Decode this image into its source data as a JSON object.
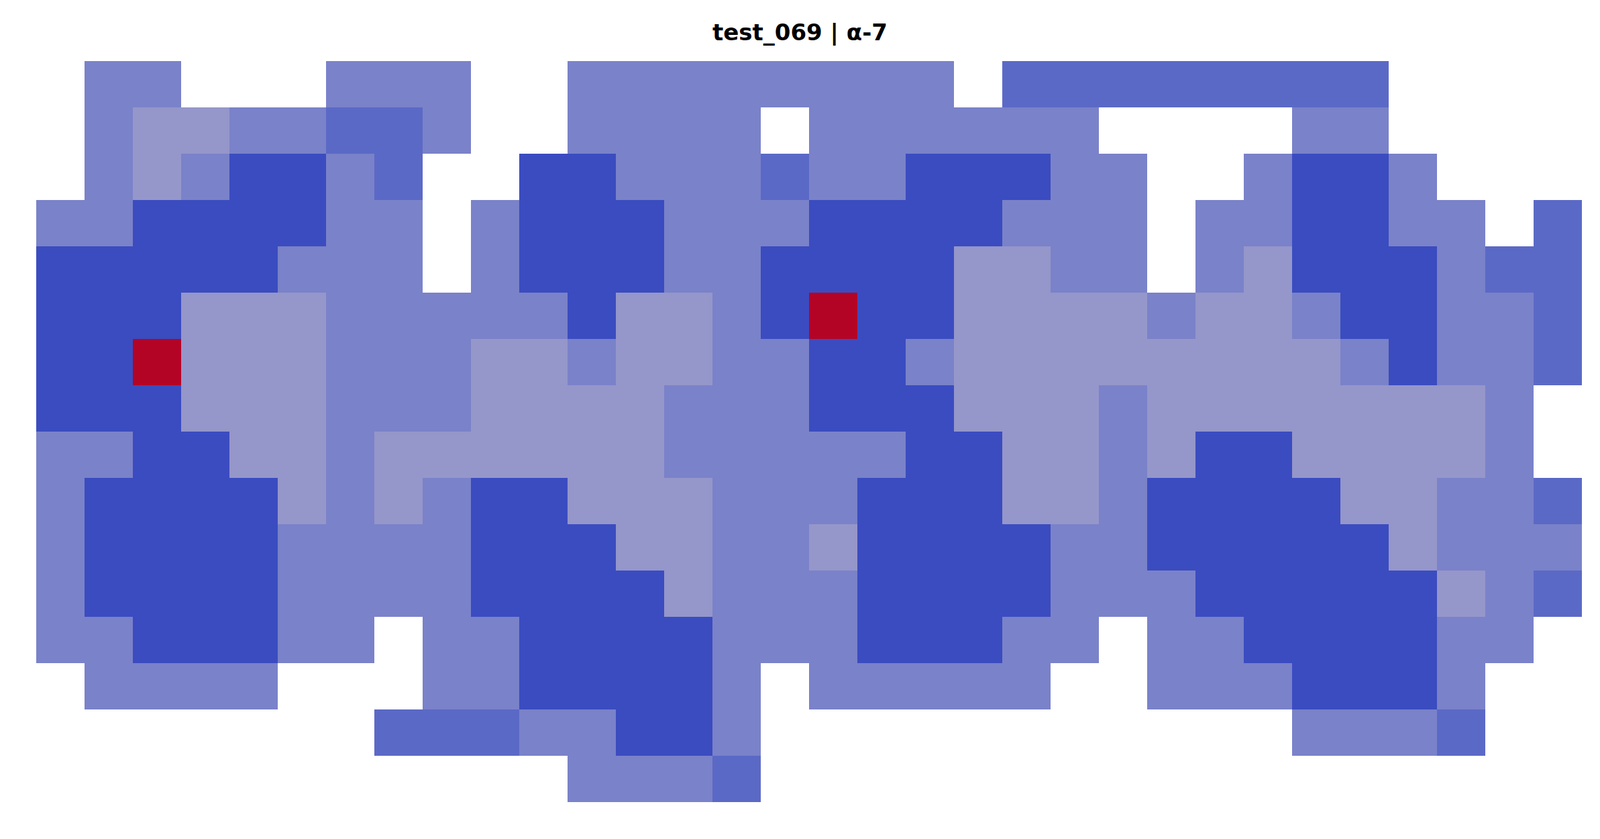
{
  "chart_data": {
    "type": "heatmap",
    "title": "test_069 | α-7",
    "tick_labels": false,
    "value_range": [
      0,
      1
    ],
    "cells": [
      [
        null,
        0.2,
        0.2,
        null,
        null,
        null,
        0.2,
        0.2,
        0.2,
        null,
        null,
        0.2,
        0.2,
        0.2,
        0.2,
        0.2,
        0.2,
        0.2,
        0.2,
        null,
        0.1,
        0.1,
        0.1,
        0.1,
        0.1,
        0.1,
        0.1,
        0.1,
        null,
        null,
        null,
        null
      ],
      [
        null,
        0.2,
        0.3,
        0.3,
        0.2,
        0.2,
        0.1,
        0.1,
        0.2,
        null,
        null,
        0.2,
        0.2,
        0.2,
        0.2,
        null,
        0.2,
        0.2,
        0.2,
        0.2,
        0.2,
        0.2,
        null,
        null,
        null,
        null,
        0.2,
        0.2,
        null,
        null,
        null,
        null
      ],
      [
        null,
        0.2,
        0.3,
        0.2,
        0,
        0,
        0.2,
        0.1,
        null,
        null,
        0,
        0,
        0.2,
        0.2,
        0.2,
        0.1,
        0.2,
        0.2,
        0,
        0,
        0,
        0.2,
        0.2,
        null,
        null,
        0.2,
        0,
        0,
        0.2,
        null,
        null,
        null
      ],
      [
        0.2,
        0.2,
        0,
        0,
        0,
        0,
        0.2,
        0.2,
        null,
        0.2,
        0,
        0,
        0,
        0.2,
        0.2,
        0.2,
        0,
        0,
        0,
        0,
        0.2,
        0.2,
        0.2,
        null,
        0.2,
        0.2,
        0,
        0,
        0.2,
        0.2,
        null,
        0.1
      ],
      [
        0,
        0,
        0,
        0,
        0,
        0.2,
        0.2,
        0.2,
        null,
        0.2,
        0,
        0,
        0,
        0.2,
        0.2,
        0,
        0,
        0,
        0,
        0.3,
        0.3,
        0.2,
        0.2,
        null,
        0.2,
        0.3,
        0,
        0,
        0,
        0.2,
        0.1,
        0.1
      ],
      [
        0,
        0,
        0,
        0.3,
        0.3,
        0.3,
        0.2,
        0.2,
        0.2,
        0.2,
        0.2,
        0,
        0.3,
        0.3,
        0.2,
        0,
        1,
        0,
        0,
        0.3,
        0.3,
        0.3,
        0.3,
        0.2,
        0.3,
        0.3,
        0.2,
        0,
        0,
        0.2,
        0.2,
        0.1
      ],
      [
        0,
        0,
        1,
        0.3,
        0.3,
        0.3,
        0.2,
        0.2,
        0.2,
        0.3,
        0.3,
        0.2,
        0.3,
        0.3,
        0.2,
        0.2,
        0,
        0,
        0.2,
        0.3,
        0.3,
        0.3,
        0.3,
        0.3,
        0.3,
        0.3,
        0.3,
        0.2,
        0,
        0.2,
        0.2,
        0.1
      ],
      [
        0,
        0,
        0,
        0.3,
        0.3,
        0.3,
        0.2,
        0.2,
        0.2,
        0.3,
        0.3,
        0.3,
        0.3,
        0.2,
        0.2,
        0.2,
        0,
        0,
        0,
        0.3,
        0.3,
        0.3,
        0.2,
        0.3,
        0.3,
        0.3,
        0.3,
        0.3,
        0.3,
        0.3,
        0.2,
        null
      ],
      [
        0.2,
        0.2,
        0,
        0,
        0.3,
        0.3,
        0.2,
        0.3,
        0.3,
        0.3,
        0.3,
        0.3,
        0.3,
        0.2,
        0.2,
        0.2,
        0.2,
        0.2,
        0,
        0,
        0.3,
        0.3,
        0.2,
        0.3,
        0,
        0,
        0.3,
        0.3,
        0.3,
        0.3,
        0.2,
        null
      ],
      [
        0.2,
        0,
        0,
        0,
        0,
        0.3,
        0.2,
        0.3,
        0.2,
        0,
        0,
        0.3,
        0.3,
        0.3,
        0.2,
        0.2,
        0.2,
        0,
        0,
        0,
        0.3,
        0.3,
        0.2,
        0,
        0,
        0,
        0,
        0.3,
        0.3,
        0.2,
        0.2,
        0.1
      ],
      [
        0.2,
        0,
        0,
        0,
        0,
        0.2,
        0.2,
        0.2,
        0.2,
        0,
        0,
        0,
        0.3,
        0.3,
        0.2,
        0.2,
        0.3,
        0,
        0,
        0,
        0,
        0.2,
        0.2,
        0,
        0,
        0,
        0,
        0,
        0.3,
        0.2,
        0.2,
        0.2
      ],
      [
        0.2,
        0,
        0,
        0,
        0,
        0.2,
        0.2,
        0.2,
        0.2,
        0,
        0,
        0,
        0,
        0.3,
        0.2,
        0.2,
        0.2,
        0,
        0,
        0,
        0,
        0.2,
        0.2,
        0.2,
        0,
        0,
        0,
        0,
        0,
        0.3,
        0.2,
        0.1
      ],
      [
        0.2,
        0.2,
        0,
        0,
        0,
        0.2,
        0.2,
        null,
        0.2,
        0.2,
        0,
        0,
        0,
        0,
        0.2,
        0.2,
        0.2,
        0,
        0,
        0,
        0.2,
        0.2,
        null,
        0.2,
        0.2,
        0,
        0,
        0,
        0,
        0.2,
        0.2,
        null
      ],
      [
        null,
        0.2,
        0.2,
        0.2,
        0.2,
        null,
        null,
        null,
        0.2,
        0.2,
        0,
        0,
        0,
        0,
        0.2,
        null,
        0.2,
        0.2,
        0.2,
        0.2,
        0.2,
        null,
        null,
        0.2,
        0.2,
        0.2,
        0,
        0,
        0,
        0.2,
        null,
        null
      ],
      [
        null,
        null,
        null,
        null,
        null,
        null,
        null,
        0.1,
        0.1,
        0.1,
        0.2,
        0.2,
        0,
        0,
        0.2,
        null,
        null,
        null,
        null,
        null,
        null,
        null,
        null,
        null,
        null,
        null,
        0.2,
        0.2,
        0.2,
        0.1,
        null,
        null
      ],
      [
        null,
        null,
        null,
        null,
        null,
        null,
        null,
        null,
        null,
        null,
        null,
        0.2,
        0.2,
        0.2,
        0.1,
        null,
        null,
        null,
        null,
        null,
        null,
        null,
        null,
        null,
        null,
        null,
        null,
        null,
        null,
        null,
        null,
        null
      ]
    ]
  }
}
